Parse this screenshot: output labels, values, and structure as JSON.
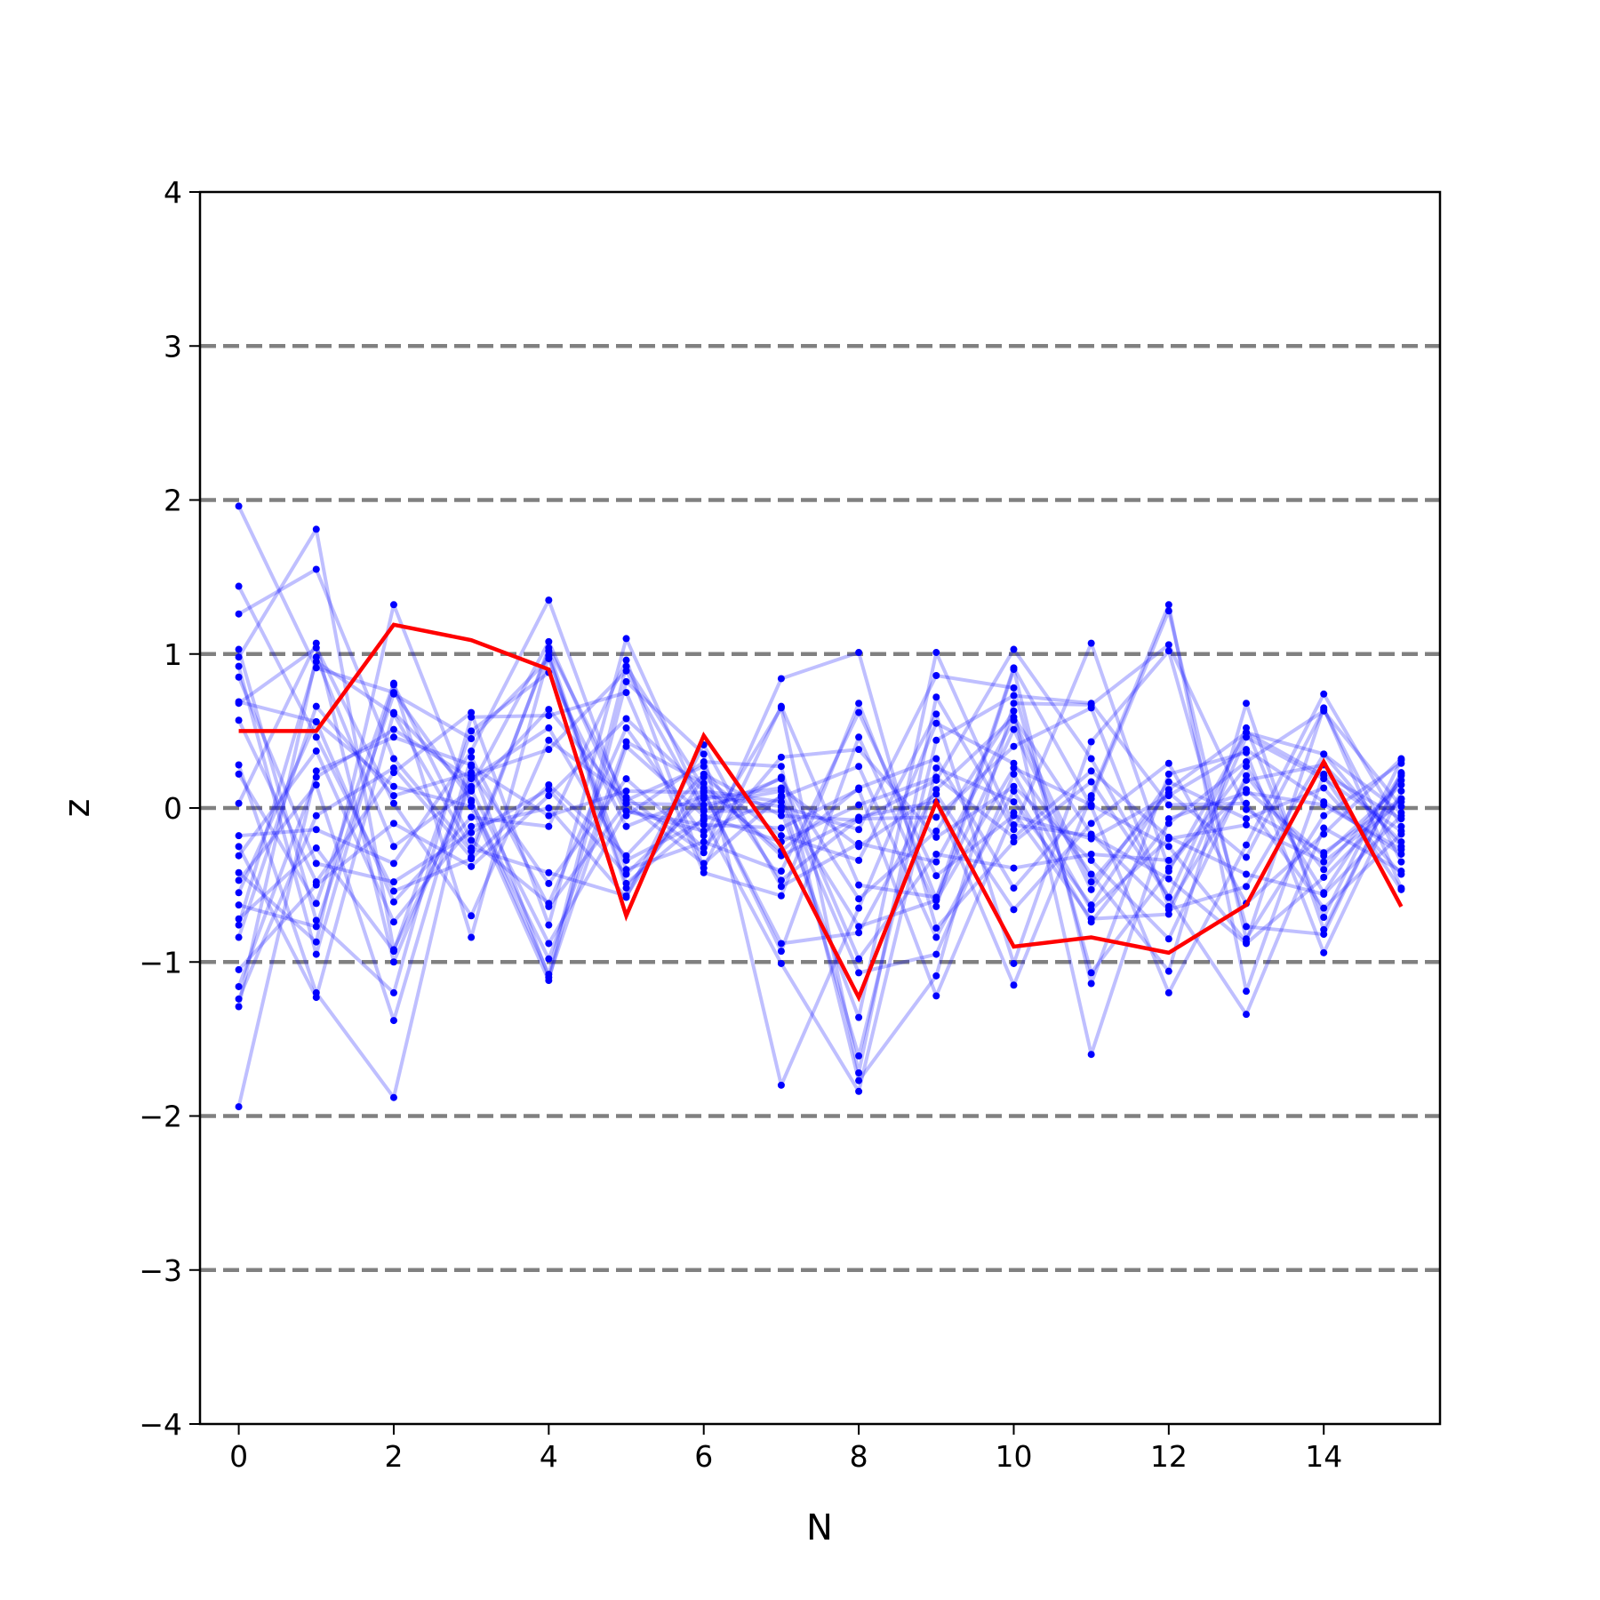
{
  "chart_data": {
    "type": "line",
    "xlabel": "N",
    "ylabel": "z",
    "xlim": [
      -0.5,
      15.5
    ],
    "ylim": [
      -4,
      4
    ],
    "x_ticks": [
      0,
      2,
      4,
      6,
      8,
      10,
      12,
      14
    ],
    "x_tick_labels": [
      "0",
      "2",
      "4",
      "6",
      "8",
      "10",
      "12",
      "14"
    ],
    "y_ticks": [
      -4,
      -3,
      -2,
      -1,
      0,
      1,
      2,
      3,
      4
    ],
    "y_tick_labels": [
      "−4",
      "−3",
      "−2",
      "−1",
      "0",
      "1",
      "2",
      "3",
      "4"
    ],
    "reference_lines_y": [
      -3,
      -2,
      -1,
      0,
      1,
      2,
      3
    ],
    "colors": {
      "samples": "#0000ff",
      "highlight": "#ff0000",
      "reference": "#808080"
    },
    "x": [
      0,
      1,
      2,
      3,
      4,
      5,
      6,
      7,
      8,
      9,
      10,
      11,
      12,
      13,
      14,
      15
    ],
    "highlight_series": {
      "values": [
        0.5,
        0.5,
        1.19,
        1.09,
        0.9,
        -0.7,
        0.47,
        -0.25,
        -1.23,
        0.04,
        -0.9,
        -0.84,
        -0.94,
        -0.63,
        0.3,
        -0.64
      ]
    },
    "sample_series": [
      {
        "values": [
          1.96,
          0.91,
          0.75,
          0.05,
          -1.08,
          0.92,
          0.13,
          -0.28,
          0.13,
          0.32,
          -0.52,
          0.06,
          1.28,
          -0.85,
          -0.05,
          0.29
        ]
      },
      {
        "values": [
          1.44,
          0.46,
          -0.54,
          -0.33,
          0.15,
          -0.31,
          0.22,
          -0.05,
          -0.08,
          0.18,
          1.03,
          0.32,
          -0.58,
          0.52,
          -0.71,
          0.31
        ]
      },
      {
        "values": [
          1.26,
          1.55,
          0.32,
          -0.28,
          1.02,
          -0.49,
          -0.07,
          -1.01,
          -1.84,
          0.26,
          0.04,
          -0.63,
          0.12,
          0.49,
          0.21,
          -0.53
        ]
      },
      {
        "values": [
          1.03,
          -0.73,
          -1.2,
          0.59,
          0.6,
          0.75,
          -0.42,
          -0.57,
          0.68,
          -0.59,
          0.91,
          0.01,
          -1.2,
          -0.24,
          0.74,
          -0.12
        ]
      },
      {
        "values": [
          0.98,
          1.81,
          -0.92,
          0.14,
          1.08,
          -0.05,
          0.3,
          0.27,
          -1.77,
          -1.09,
          0.68,
          0.67,
          1.06,
          -0.01,
          -0.29,
          0.06
        ]
      },
      {
        "values": [
          0.92,
          -0.95,
          0.8,
          -0.21,
          -0.62,
          0.52,
          -0.18,
          0.65,
          -1.72,
          0.72,
          -0.14,
          1.07,
          -0.39,
          0.27,
          -0.55,
          0.22
        ]
      },
      {
        "values": [
          0.69,
          0.56,
          0.14,
          0.01,
          -1.12,
          0.82,
          0.35,
          -1.8,
          -0.65,
          0.55,
          0.29,
          -0.43,
          -1.06,
          0.68,
          -0.79,
          0.21
        ]
      },
      {
        "values": [
          0.68,
          1.04,
          0.03,
          -0.7,
          0.44,
          0.07,
          -0.29,
          0.84,
          1.01,
          -0.78,
          -0.22,
          0.17,
          -0.58,
          -1.34,
          -0.13,
          -0.41
        ]
      },
      {
        "values": [
          0.57,
          -0.48,
          0.23,
          0.62,
          -0.76,
          1.1,
          -0.01,
          0.19,
          -0.59,
          -0.15,
          0.63,
          -1.6,
          -0.07,
          0.1,
          0.02,
          -0.27
        ]
      },
      {
        "values": [
          0.28,
          -1.2,
          -1.88,
          0.27,
          -0.05,
          0.11,
          0.1,
          -0.88,
          -0.81,
          0.12,
          0.59,
          -0.17,
          -0.66,
          -0.51,
          0.35,
          -0.03
        ]
      },
      {
        "values": [
          0.22,
          -0.62,
          0.81,
          -0.84,
          0.99,
          -0.52,
          0.11,
          -0.93,
          0.46,
          -0.64,
          0.9,
          -1.14,
          0.22,
          0.36,
          -0.94,
          0.11
        ]
      },
      {
        "values": [
          0.03,
          1.07,
          -1.0,
          0.21,
          0.38,
          0.89,
          -0.02,
          -0.02,
          -1.36,
          1.01,
          -0.11,
          -0.18,
          -0.46,
          -0.88,
          -0.45,
          0.06
        ]
      },
      {
        "values": [
          -0.18,
          -0.14,
          -0.36,
          0.37,
          1.35,
          -0.02,
          -0.11,
          -0.13,
          0.12,
          -1.22,
          -0.03,
          -0.72,
          -0.69,
          0.46,
          0.19,
          -0.15
        ]
      },
      {
        "values": [
          -0.25,
          -1.23,
          0.62,
          0.11,
          0.64,
          0.03,
          -0.36,
          0.08,
          -1.61,
          0.44,
          0.73,
          0.68,
          0.02,
          0.03,
          -0.65,
          -0.17
        ]
      },
      {
        "values": [
          -0.31,
          0.37,
          -0.74,
          -0.12,
          0.0,
          -0.58,
          0.41,
          -0.51,
          -0.23,
          -0.35,
          0.57,
          -0.48,
          0.1,
          -0.32,
          0.64,
          -0.35
        ]
      },
      {
        "values": [
          -0.42,
          -0.87,
          1.32,
          0.04,
          -0.98,
          0.43,
          0.16,
          -0.31,
          -0.06,
          0.04,
          -1.15,
          0.08,
          1.32,
          -1.19,
          0.22,
          -0.07
        ]
      },
      {
        "values": [
          -0.47,
          0.15,
          -1.38,
          0.33,
          -0.64,
          0.03,
          0.02,
          0.11,
          -1.07,
          -0.95,
          0.22,
          -0.66,
          -0.2,
          -0.11,
          -0.35,
          0.04
        ]
      },
      {
        "values": [
          -0.55,
          0.56,
          -0.61,
          -0.06,
          -0.12,
          0.96,
          -0.39,
          0.66,
          -0.5,
          -0.58,
          0.51,
          -0.53,
          0.17,
          -0.07,
          0.13,
          -0.43
        ]
      },
      {
        "values": [
          -0.63,
          -0.77,
          0.74,
          0.45,
          0.97,
          -0.4,
          -0.22,
          -0.41,
          0.62,
          -0.44,
          -0.05,
          -0.2,
          0.08,
          0.38,
          0.04,
          -0.3
        ]
      },
      {
        "values": [
          -0.72,
          -0.26,
          -0.93,
          0.5,
          0.88,
          -0.12,
          0.08,
          0.01,
          -0.14,
          0.86,
          0.78,
          -1.07,
          -0.41,
          0.49,
          0.35,
          -0.25
        ]
      },
      {
        "values": [
          -0.76,
          0.95,
          0.61,
          -0.26,
          -0.42,
          -0.57,
          0.2,
          -0.18,
          -0.34,
          0.61,
          -1.01,
          0.43,
          1.02,
          -0.77,
          -0.82,
          0.23
        ]
      },
      {
        "values": [
          -1.05,
          -0.5,
          -0.1,
          -0.38,
          0.08,
          0.58,
          0.11,
          0.04,
          -0.77,
          -0.6,
          0.26,
          0.02,
          -0.25,
          -0.87,
          0.65,
          -0.52
        ]
      },
      {
        "values": [
          -1.16,
          0.2,
          0.51,
          0.19,
          0.52,
          -0.34,
          -0.08,
          0.2,
          -0.98,
          -0.3,
          -0.39,
          -0.3,
          -0.34,
          0.12,
          -0.31,
          0.15
        ]
      },
      {
        "values": [
          -1.24,
          -0.05,
          0.26,
          -0.32,
          1.04,
          0.05,
          0.27,
          -0.47,
          -0.07,
          -0.06,
          0.4,
          0.65,
          -0.64,
          0.18,
          0.28,
          -0.22
        ]
      },
      {
        "values": [
          -1.29,
          0.98,
          -0.25,
          0.12,
          -0.88,
          -0.02,
          -0.15,
          0.07,
          0.27,
          -0.84,
          0.11,
          -0.74,
          -0.1,
          0.3,
          0.63,
          0.01
        ]
      },
      {
        "values": [
          -1.94,
          0.24,
          0.46,
          0.28,
          -1.1,
          0.4,
          -0.05,
          -0.22,
          0.02,
          0.2,
          -0.19,
          0.24,
          -0.19,
          -0.43,
          -0.56,
          -0.05
        ]
      },
      {
        "values": [
          0.85,
          -0.36,
          -0.48,
          -0.16,
          0.12,
          -0.43,
          0.06,
          0.13,
          -0.25,
          0.09,
          -0.66,
          -0.1,
          0.29,
          -0.62,
          -0.17,
          0.32
        ]
      },
      {
        "values": [
          -0.84,
          0.66,
          0.08,
          0.23,
          -0.49,
          0.19,
          -0.26,
          0.33,
          0.38,
          -0.19,
          0.14,
          -0.34,
          -0.85,
          0.21,
          -0.4,
          0.18
        ]
      }
    ]
  }
}
